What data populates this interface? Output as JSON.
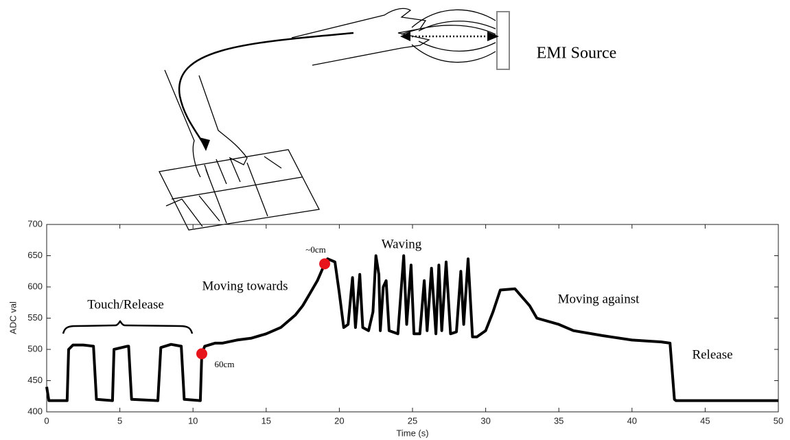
{
  "chart_data": {
    "type": "line",
    "xlabel": "Time (s)",
    "ylabel": "ADC val",
    "xlim": [
      0,
      50
    ],
    "xticks": [
      0,
      5,
      10,
      15,
      20,
      25,
      30,
      35,
      40,
      45,
      50
    ],
    "ylim": [
      400,
      700
    ],
    "yticks": [
      400,
      450,
      500,
      550,
      600,
      650,
      700
    ],
    "series": [
      {
        "color": "#000000",
        "x": [
          0,
          0.15,
          1.4,
          1.5,
          1.8,
          2.5,
          3.2,
          3.4,
          4.5,
          4.6,
          5.5,
          5.6,
          5.8,
          7.6,
          7.8,
          8.5,
          9.2,
          9.4,
          10.5,
          10.6,
          10.8,
          11.5,
          12,
          13,
          14,
          15,
          16,
          17,
          17.5,
          18,
          18.5,
          19,
          19.2,
          19.7,
          20,
          20.3,
          20.6,
          20.9,
          21.1,
          21.4,
          21.6,
          22,
          22.3,
          22.5,
          22.7,
          22.8,
          23,
          23.2,
          23.4,
          24,
          24.4,
          24.6,
          24.9,
          25.1,
          25.5,
          25.8,
          26,
          26.3,
          26.6,
          26.8,
          27,
          27.3,
          27.6,
          28,
          28.3,
          28.5,
          28.8,
          29.1,
          29.4,
          30,
          30.5,
          31,
          32,
          33,
          33.5,
          35,
          36,
          38,
          40,
          42,
          42.6,
          42.9,
          43,
          50
        ],
        "values": [
          440,
          418,
          418,
          500,
          507,
          507,
          505,
          420,
          418,
          500,
          505,
          505,
          420,
          418,
          503,
          508,
          505,
          420,
          418,
          493,
          505,
          510,
          510,
          515,
          518,
          525,
          535,
          555,
          570,
          590,
          610,
          637,
          645,
          640,
          590,
          535,
          540,
          615,
          535,
          620,
          535,
          530,
          560,
          650,
          620,
          530,
          600,
          610,
          530,
          525,
          650,
          540,
          635,
          525,
          525,
          610,
          530,
          630,
          525,
          635,
          530,
          640,
          525,
          528,
          625,
          540,
          645,
          520,
          520,
          530,
          560,
          595,
          597,
          570,
          550,
          540,
          530,
          522,
          515,
          512,
          510,
          420,
          418,
          418
        ]
      }
    ],
    "markers": {
      "color": "#e8141b",
      "x": [
        10.6,
        19
      ],
      "values": [
        493,
        637
      ]
    },
    "annotations": [
      "Touch/Release",
      "Moving towards",
      "~0cm",
      "Waving",
      "60cm",
      "Moving against",
      "Release",
      "EMI Source"
    ]
  }
}
